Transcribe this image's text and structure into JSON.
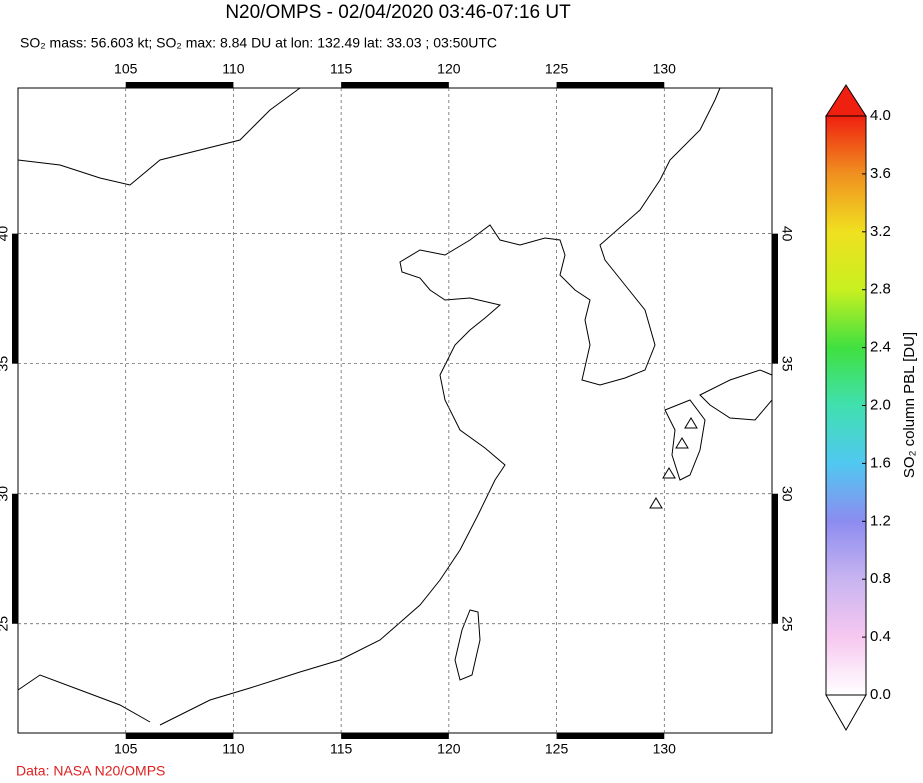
{
  "header": {
    "title": "N20/OMPS - 02/04/2020 03:46-07:16 UT",
    "subtitle": "SO₂ mass: 56.603 kt; SO₂ max: 8.84 DU at lon: 132.49 lat: 33.03 ; 03:50UTC"
  },
  "chart_data": {
    "type": "map",
    "xlim": [
      100,
      135
    ],
    "ylim": [
      20.8,
      45.6
    ],
    "xticks": [
      105,
      110,
      115,
      120,
      125,
      130
    ],
    "yticks": [
      25,
      30,
      35,
      40
    ],
    "grid": true,
    "colorbar": {
      "label": "SO₂ column PBL [DU]",
      "lim": [
        0,
        4
      ],
      "ticks": [
        {
          "value": 0,
          "label": "0.0"
        },
        {
          "value": 0.4,
          "label": "0.4"
        },
        {
          "value": 0.8,
          "label": "0.8"
        },
        {
          "value": 1.2,
          "label": "1.2"
        },
        {
          "value": 1.6,
          "label": "1.6"
        },
        {
          "value": 2,
          "label": "2.0"
        },
        {
          "value": 2.4,
          "label": "2.4"
        },
        {
          "value": 2.8,
          "label": "2.8"
        },
        {
          "value": 3.2,
          "label": "3.2"
        },
        {
          "value": 3.6,
          "label": "3.6"
        },
        {
          "value": 4,
          "label": "4.0"
        }
      ],
      "colors": [
        "#ffffff",
        "#f6c8f0",
        "#c8b4f0",
        "#8c8cf0",
        "#50c8f0",
        "#40e0b0",
        "#40e040",
        "#c8f020",
        "#f0e020",
        "#f09020",
        "#f02010"
      ]
    }
  },
  "footer": "Data: NASA N20/OMPS"
}
